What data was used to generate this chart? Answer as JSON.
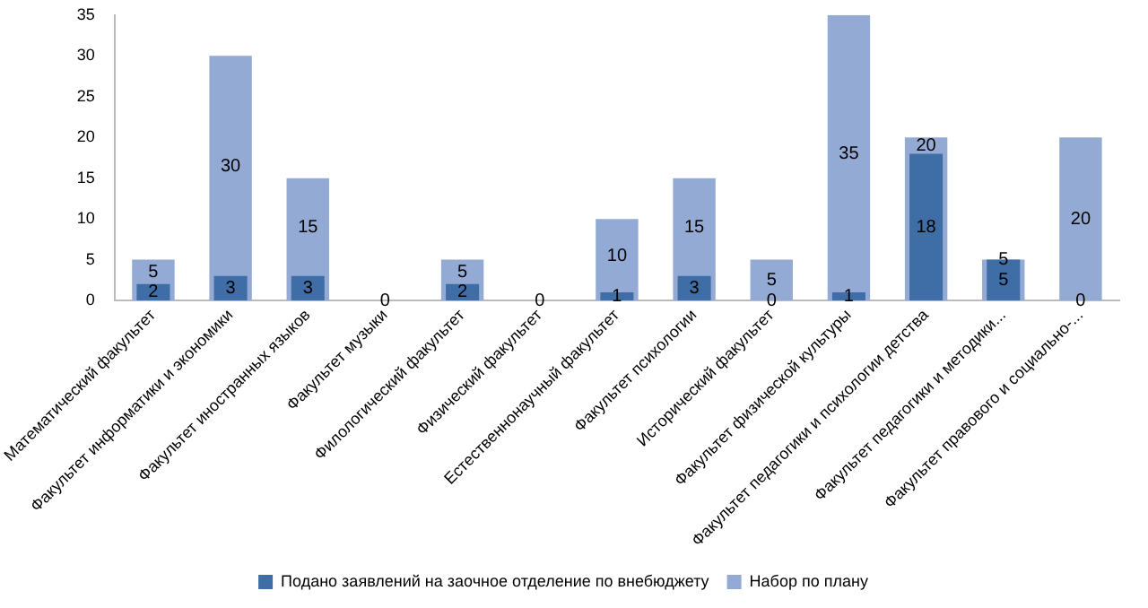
{
  "chart_data": {
    "type": "bar",
    "categories": [
      "Математический факультет",
      "Факультет информатики и экономики",
      "Факультет иностранных языков",
      "Факультет музыки",
      "Филологический факультет",
      "Физический факультет",
      "Естественнонаучный факультет",
      "Факультет психологии",
      "Исторический факультет",
      "Факультет физической культуры",
      "Факультет педагогики и психологии детства",
      "Факультет педагогики и методики...",
      "Факультет правового и социально-..."
    ],
    "series": [
      {
        "name": "Подано заявлений на заочное отделение по внебюджету",
        "color": "#3f6da5",
        "values": [
          2,
          3,
          3,
          0,
          2,
          0,
          1,
          3,
          0,
          1,
          18,
          5,
          0
        ]
      },
      {
        "name": "Набор по плану",
        "color": "#93aad4",
        "values": [
          5,
          30,
          15,
          null,
          5,
          null,
          10,
          15,
          5,
          35,
          20,
          5,
          20
        ]
      }
    ],
    "ylim": [
      0,
      35
    ],
    "yticks": [
      0,
      5,
      10,
      15,
      20,
      25,
      30,
      35
    ],
    "grid": false,
    "legend": "bottom",
    "data_labels": true
  }
}
